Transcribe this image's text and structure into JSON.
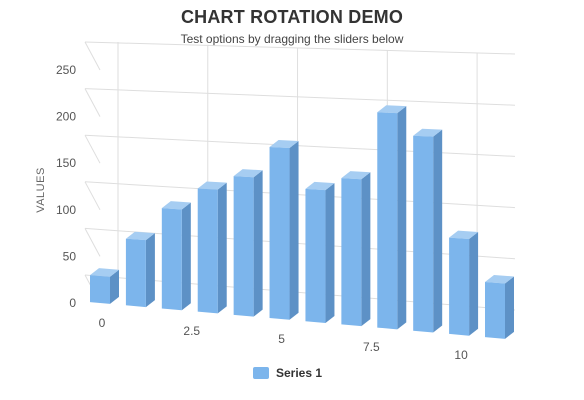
{
  "colors": {
    "bar_front": "#7cb5ec",
    "bar_side": "#5d91c6",
    "bar_top": "#a6cdf2",
    "grid": "#dedede",
    "text": "#333333"
  },
  "chart_data": {
    "type": "bar",
    "variant": "3d-column",
    "title": "CHART ROTATION DEMO",
    "subtitle": "Test options by dragging the sliders below",
    "xlabel": "",
    "ylabel": "VALUES",
    "ylim": [
      0,
      250
    ],
    "y_ticks": [
      "0",
      "50",
      "100",
      "150",
      "200",
      "250"
    ],
    "x_ticks": [
      "0",
      "2.5",
      "5",
      "7.5",
      "10"
    ],
    "x_tick_values": [
      0,
      2.5,
      5,
      7.5,
      10
    ],
    "x": [
      0,
      1,
      2,
      3,
      4,
      5,
      6,
      7,
      8,
      9,
      10,
      11
    ],
    "series": [
      {
        "name": "Series 1",
        "values": [
          29,
          71,
          106,
          129,
          144,
          176,
          135,
          148,
          216,
          194,
          95,
          54
        ]
      }
    ],
    "grid": true,
    "legend": "bottom-center"
  }
}
